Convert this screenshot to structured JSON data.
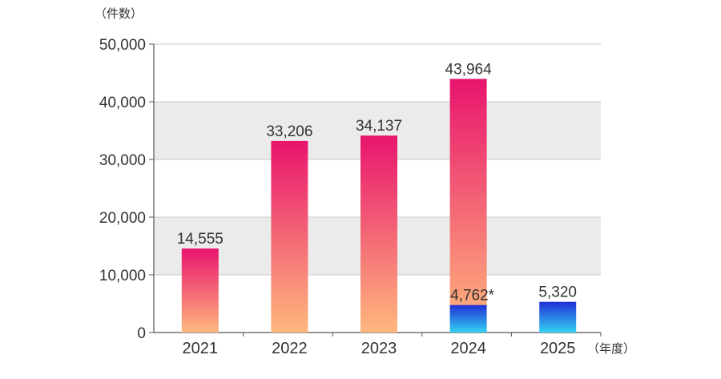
{
  "chart_data": {
    "type": "bar",
    "categories": [
      "2021",
      "2022",
      "2023",
      "2024",
      "2025"
    ],
    "series": [
      {
        "values": [
          14555,
          33206,
          34137,
          43964,
          null
        ],
        "color_top": "#e8146e",
        "color_bottom": "#ffb87e"
      },
      {
        "values": [
          null,
          null,
          null,
          4762,
          5320
        ],
        "color_top": "#1f2fd6",
        "color_bottom": "#33d2f2"
      }
    ],
    "data_labels": [
      {
        "category": "2021",
        "text": "14,555"
      },
      {
        "category": "2022",
        "text": "33,206"
      },
      {
        "category": "2023",
        "text": "34,137"
      },
      {
        "category": "2024",
        "text": "43,964"
      },
      {
        "category": "2024",
        "text": "4,762*"
      },
      {
        "category": "2025",
        "text": "5,320"
      }
    ],
    "yticks": [
      "0",
      "10,000",
      "20,000",
      "30,000",
      "40,000",
      "50,000"
    ],
    "ylim": [
      0,
      50000
    ],
    "y_unit": "（件数）",
    "x_unit": "（年度）",
    "grid": "alternating-bands",
    "band_color": "#ebebeb"
  }
}
